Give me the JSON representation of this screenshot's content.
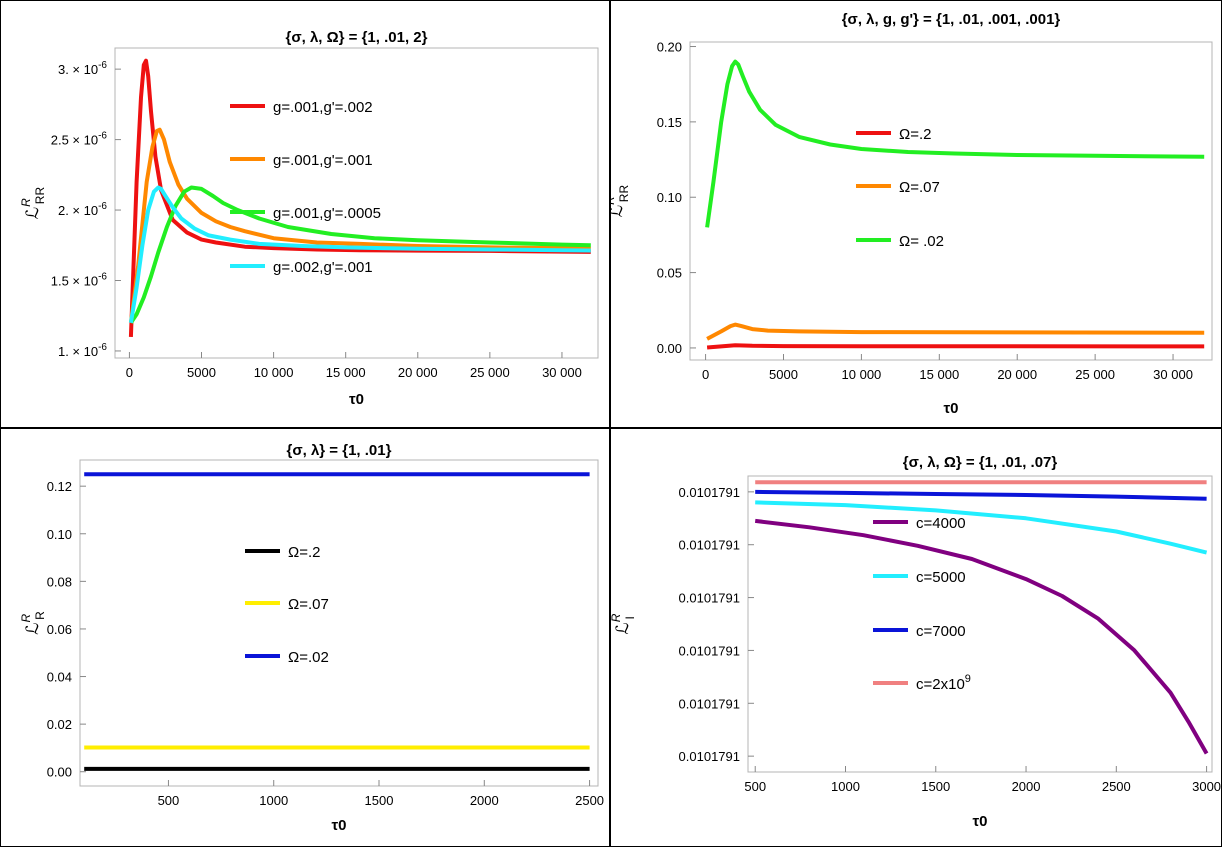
{
  "chart_data": [
    {
      "type": "line",
      "title": "{σ, λ, Ω} = {1, .01, 2}",
      "xlabel": "τ0",
      "ylabel": {
        "main": "ℒ",
        "sup": "R",
        "sub": "RR"
      },
      "xlim": [
        -1000,
        32500
      ],
      "ylim": [
        9.5e-07,
        3.15e-06
      ],
      "xticks": [
        0,
        5000,
        10000,
        15000,
        20000,
        25000,
        30000
      ],
      "xtick_labels": [
        "0",
        "5000",
        "10 000",
        "15 000",
        "20 000",
        "25 000",
        "30 000"
      ],
      "yticks": [
        1e-06,
        1.5e-06,
        2e-06,
        2.5e-06,
        3e-06
      ],
      "ytick_labels": [
        {
          "m": "1.",
          "e": "-6"
        },
        {
          "m": "1.5",
          "e": "-6"
        },
        {
          "m": "2.",
          "e": "-6"
        },
        {
          "m": "2.5",
          "e": "-6"
        },
        {
          "m": "3.",
          "e": "-6"
        }
      ],
      "series": [
        {
          "name": "g=.001,g'=.002",
          "color": "#ee1111",
          "x": [
            100,
            500,
            800,
            1000,
            1150,
            1300,
            1500,
            1800,
            2200,
            3000,
            4000,
            5000,
            6000,
            8000,
            10000,
            13000,
            16000,
            20000,
            25000,
            30000,
            32000
          ],
          "y": [
            1.1e-06,
            2.2e-06,
            2.8e-06,
            3.03e-06,
            3.06e-06,
            2.95e-06,
            2.7e-06,
            2.38e-06,
            2.14e-06,
            1.93e-06,
            1.84e-06,
            1.79e-06,
            1.77e-06,
            1.74e-06,
            1.73e-06,
            1.72e-06,
            1.715e-06,
            1.712e-06,
            1.71e-06,
            1.705e-06,
            1.703e-06
          ]
        },
        {
          "name": "g=.001,g'=.001",
          "color": "#ff8800",
          "x": [
            100,
            600,
            1200,
            1600,
            1900,
            2100,
            2400,
            2800,
            3400,
            4000,
            5000,
            6000,
            7000,
            8000,
            10000,
            13000,
            16000,
            20000,
            25000,
            30000,
            32000
          ],
          "y": [
            1.2e-06,
            1.6e-06,
            2.2e-06,
            2.45e-06,
            2.56e-06,
            2.57e-06,
            2.5e-06,
            2.34e-06,
            2.18e-06,
            2.08e-06,
            1.98e-06,
            1.92e-06,
            1.88e-06,
            1.85e-06,
            1.8e-06,
            1.77e-06,
            1.76e-06,
            1.745e-06,
            1.735e-06,
            1.73e-06,
            1.725e-06
          ]
        },
        {
          "name": "g=.001,g'=.0005",
          "color": "#22ee22",
          "x": [
            100,
            500,
            1000,
            1500,
            2000,
            2600,
            3200,
            3800,
            4300,
            5000,
            5800,
            6500,
            7500,
            9000,
            11000,
            14000,
            17000,
            20000,
            25000,
            30000,
            32000
          ],
          "y": [
            1.2e-06,
            1.26e-06,
            1.38e-06,
            1.53e-06,
            1.7e-06,
            1.88e-06,
            2.03e-06,
            2.13e-06,
            2.16e-06,
            2.15e-06,
            2.1e-06,
            2.05e-06,
            2e-06,
            1.94e-06,
            1.88e-06,
            1.83e-06,
            1.8e-06,
            1.785e-06,
            1.77e-06,
            1.755e-06,
            1.75e-06
          ]
        },
        {
          "name": "g=.002,g'=.001",
          "color": "#22eeff",
          "x": [
            100,
            500,
            900,
            1300,
            1700,
            2000,
            2200,
            2500,
            3000,
            3600,
            4500,
            5500,
            7000,
            9000,
            12000,
            15000,
            20000,
            25000,
            30000,
            32000
          ],
          "y": [
            1.2e-06,
            1.45e-06,
            1.75e-06,
            2e-06,
            2.13e-06,
            2.16e-06,
            2.15e-06,
            2.1e-06,
            2.02e-06,
            1.94e-06,
            1.87e-06,
            1.82e-06,
            1.79e-06,
            1.76e-06,
            1.745e-06,
            1.735e-06,
            1.725e-06,
            1.72e-06,
            1.715e-06,
            1.713e-06
          ]
        }
      ],
      "legend": "top-center"
    },
    {
      "type": "line",
      "title": "{σ, λ, g, g'} = {1, .01, .001, .001}",
      "xlabel": "τ0",
      "ylabel": {
        "main": "ℒ",
        "sup": "R",
        "sub": "RR"
      },
      "xlim": [
        -1000,
        32500
      ],
      "ylim": [
        -0.008,
        0.203
      ],
      "xticks": [
        0,
        5000,
        10000,
        15000,
        20000,
        25000,
        30000
      ],
      "xtick_labels": [
        "0",
        "5000",
        "10 000",
        "15 000",
        "20 000",
        "25 000",
        "30 000"
      ],
      "yticks": [
        0.0,
        0.05,
        0.1,
        0.15,
        0.2
      ],
      "ytick_labels": [
        "0.00",
        "0.05",
        "0.10",
        "0.15",
        "0.20"
      ],
      "series": [
        {
          "name": "Ω=.2",
          "color": "#ee1111",
          "x": [
            100,
            1000,
            1900,
            3000,
            5000,
            10000,
            20000,
            32000
          ],
          "y": [
            0.0003,
            0.001,
            0.0018,
            0.0014,
            0.0012,
            0.0011,
            0.0011,
            0.001
          ]
        },
        {
          "name": "Ω=.07",
          "color": "#ff8800",
          "x": [
            100,
            1000,
            1600,
            1900,
            2300,
            3000,
            4000,
            6000,
            10000,
            20000,
            32000
          ],
          "y": [
            0.006,
            0.011,
            0.0145,
            0.0155,
            0.0145,
            0.0125,
            0.0115,
            0.011,
            0.0105,
            0.0103,
            0.0101
          ]
        },
        {
          "name": "Ω= .02",
          "color": "#22ee22",
          "x": [
            100,
            500,
            1000,
            1400,
            1700,
            1900,
            2100,
            2400,
            2800,
            3500,
            4500,
            6000,
            8000,
            10000,
            13000,
            16000,
            20000,
            25000,
            30000,
            32000
          ],
          "y": [
            0.08,
            0.11,
            0.15,
            0.175,
            0.187,
            0.19,
            0.188,
            0.18,
            0.17,
            0.158,
            0.148,
            0.14,
            0.135,
            0.132,
            0.13,
            0.129,
            0.128,
            0.1275,
            0.127,
            0.1268
          ]
        }
      ],
      "legend": "center"
    },
    {
      "type": "line",
      "title": "{σ, λ} = {1, .01}",
      "xlabel": "τ0",
      "ylabel": {
        "main": "ℒ",
        "sup": "R",
        "sub": "R"
      },
      "xlim": [
        80,
        2540
      ],
      "ylim": [
        -0.006,
        0.131
      ],
      "xticks": [
        500,
        1000,
        1500,
        2000,
        2500
      ],
      "xtick_labels": [
        "500",
        "1000",
        "1500",
        "2000",
        "2500"
      ],
      "yticks": [
        0.0,
        0.02,
        0.04,
        0.06,
        0.08,
        0.1,
        0.12
      ],
      "ytick_labels": [
        "0.00",
        "0.02",
        "0.04",
        "0.06",
        "0.08",
        "0.10",
        "0.12"
      ],
      "series": [
        {
          "name": "Ω=.2",
          "color": "#000000",
          "x": [
            100,
            2500
          ],
          "y": [
            0.0012,
            0.0012
          ]
        },
        {
          "name": "Ω=.07",
          "color": "#ffee00",
          "x": [
            100,
            2500
          ],
          "y": [
            0.0102,
            0.0102
          ]
        },
        {
          "name": "Ω=.02",
          "color": "#0a14d8",
          "x": [
            100,
            2500
          ],
          "y": [
            0.125,
            0.125
          ]
        }
      ],
      "legend": "center"
    },
    {
      "type": "line",
      "title": "{σ, λ, Ω} = {1, .01, .07}",
      "xlabel": "τ0",
      "ylabel": {
        "main": "ℒ",
        "sup": "R",
        "sub": "I"
      },
      "xlim": [
        460,
        3030
      ],
      "ylim": [
        -0.3,
        5.3
      ],
      "xticks": [
        500,
        1000,
        1500,
        2000,
        2500,
        3000
      ],
      "xtick_labels": [
        "500",
        "1000",
        "1500",
        "2000",
        "2500",
        "3000"
      ],
      "yticks": [
        0,
        1,
        2,
        3,
        4,
        5
      ],
      "ytick_labels": [
        "0.0101791",
        "0.0101791",
        "0.0101791",
        "0.0101791",
        "0.0101791",
        "0.0101791"
      ],
      "series": [
        {
          "name": "c=4000",
          "color": "#800080",
          "x": [
            500,
            800,
            1100,
            1400,
            1700,
            2000,
            2200,
            2400,
            2600,
            2800,
            2900,
            3000
          ],
          "y": [
            4.45,
            4.33,
            4.18,
            3.98,
            3.73,
            3.35,
            3.03,
            2.6,
            2.0,
            1.2,
            0.65,
            0.05
          ]
        },
        {
          "name": "c=5000",
          "color": "#22eeff",
          "x": [
            500,
            1000,
            1500,
            2000,
            2500,
            2800,
            3000
          ],
          "y": [
            4.8,
            4.75,
            4.65,
            4.5,
            4.25,
            4.02,
            3.85
          ]
        },
        {
          "name": "c=7000",
          "color": "#0a14d8",
          "x": [
            500,
            1000,
            1500,
            2000,
            2500,
            3000
          ],
          "y": [
            5.0,
            4.98,
            4.96,
            4.94,
            4.91,
            4.87
          ]
        },
        {
          "name": "c=2x10",
          "name_sup": "9",
          "color": "#f08080",
          "x": [
            500,
            3000
          ],
          "y": [
            5.18,
            5.18
          ]
        }
      ],
      "legend": "center"
    }
  ]
}
